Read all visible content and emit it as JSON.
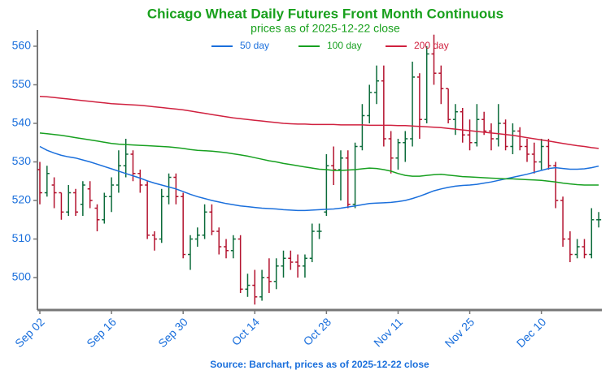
{
  "chart_data": {
    "type": "ohlc",
    "title": "Chicago Wheat Daily Futures Front Month Continuous",
    "subtitle": "prices as of 2025-12-22 close",
    "source": "Source: Barchart, prices as of 2025-12-22 close",
    "categories": [
      "Sep 02",
      null,
      null,
      null,
      null,
      null,
      null,
      null,
      null,
      null,
      "Sep 16",
      null,
      null,
      null,
      null,
      null,
      null,
      null,
      null,
      null,
      "Sep 30",
      null,
      null,
      null,
      null,
      null,
      null,
      null,
      null,
      null,
      "Oct 14",
      null,
      null,
      null,
      null,
      null,
      null,
      null,
      null,
      null,
      "Oct 28",
      null,
      null,
      null,
      null,
      null,
      null,
      null,
      null,
      null,
      "Nov 11",
      null,
      null,
      null,
      null,
      null,
      null,
      null,
      null,
      null,
      "Nov 25",
      null,
      null,
      null,
      null,
      null,
      null,
      null,
      null,
      null,
      "Dec 10",
      null,
      null,
      null,
      null,
      null,
      null,
      null,
      null
    ],
    "ohlc": {
      "open": [
        528,
        522,
        524,
        522,
        517,
        522,
        519,
        523,
        518,
        515,
        521,
        524,
        529,
        532,
        527,
        524,
        511,
        510,
        521,
        526,
        521,
        506,
        510,
        511,
        517,
        512,
        508,
        507,
        510,
        497,
        498,
        495,
        500,
        499,
        503,
        505,
        504,
        503,
        505,
        512,
        517,
        529,
        528,
        531,
        519,
        534,
        542,
        548,
        551,
        536,
        531,
        535,
        536,
        552,
        541,
        558,
        553,
        549,
        541,
        543,
        537,
        535,
        541,
        538,
        536,
        540,
        534,
        538,
        534,
        532,
        530,
        534,
        529,
        520,
        510,
        506,
        508,
        506,
        515
      ],
      "high": [
        530,
        529,
        526,
        522,
        524,
        523,
        525,
        525,
        519,
        522,
        526,
        533,
        536,
        533,
        528,
        525,
        512,
        523,
        527,
        527,
        522,
        511,
        513,
        519,
        519,
        513,
        510,
        511,
        511,
        501,
        502,
        502,
        505,
        505,
        507,
        507,
        506,
        506,
        514,
        514,
        532,
        534,
        533,
        533,
        535,
        545,
        550,
        555,
        555,
        538,
        536,
        538,
        556,
        553,
        560,
        563,
        555,
        549,
        545,
        544,
        541,
        545,
        543,
        540,
        545,
        541,
        540,
        539,
        536,
        535,
        536,
        536,
        530,
        521,
        512,
        510,
        510,
        518,
        517
      ],
      "low": [
        519,
        521,
        518,
        515,
        516,
        516,
        516,
        518,
        512,
        514,
        517,
        522,
        526,
        525,
        522,
        510,
        507,
        509,
        519,
        519,
        505,
        502,
        508,
        510,
        511,
        506,
        505,
        505,
        496,
        495,
        493,
        494,
        496,
        497,
        500,
        502,
        500,
        500,
        504,
        510,
        516,
        524,
        520,
        518,
        518,
        533,
        540,
        545,
        534,
        527,
        528,
        530,
        534,
        536,
        540,
        550,
        545,
        540,
        537,
        535,
        533,
        534,
        537,
        533,
        534,
        533,
        532,
        533,
        530,
        527,
        528,
        528,
        518,
        508,
        504,
        505,
        505,
        505,
        513
      ],
      "close": [
        522,
        527,
        522,
        517,
        522,
        517,
        524,
        520,
        515,
        521,
        524,
        529,
        532,
        527,
        524,
        511,
        510,
        521,
        526,
        521,
        506,
        510,
        511,
        517,
        512,
        508,
        507,
        510,
        497,
        498,
        495,
        500,
        499,
        503,
        505,
        504,
        503,
        505,
        512,
        512,
        529,
        528,
        531,
        519,
        534,
        542,
        548,
        551,
        536,
        531,
        535,
        536,
        552,
        541,
        558,
        553,
        549,
        541,
        543,
        537,
        535,
        541,
        538,
        536,
        540,
        534,
        538,
        534,
        532,
        530,
        534,
        529,
        520,
        510,
        506,
        508,
        506,
        515,
        515
      ]
    },
    "up_color": "#0b6b3a",
    "down_color": "#b3122e",
    "series": [
      {
        "name": "50 day",
        "color": "#1a6fdc",
        "values": [
          534,
          533,
          532.3,
          531.7,
          531.3,
          531,
          530.5,
          530,
          529.4,
          528.8,
          528.2,
          527.6,
          527,
          526.4,
          525.8,
          525.1,
          524.5,
          524,
          523.5,
          523,
          522.3,
          521.6,
          521,
          520.5,
          520,
          519.6,
          519.2,
          518.9,
          518.6,
          518.4,
          518.2,
          518,
          517.9,
          517.8,
          517.6,
          517.5,
          517.4,
          517.4,
          517.5,
          517.6,
          517.7,
          517.8,
          518,
          518.3,
          518.6,
          518.9,
          519.2,
          519.3,
          519.4,
          519.5,
          519.7,
          520,
          520.5,
          521.1,
          521.8,
          522.5,
          523,
          523.4,
          523.7,
          523.9,
          524,
          524.2,
          524.5,
          524.8,
          525.2,
          525.6,
          526,
          526.4,
          526.8,
          527.3,
          527.8,
          528.3,
          528.5,
          528.3,
          528.1,
          528.1,
          528.2,
          528.5,
          528.9
        ]
      },
      {
        "name": "100 day",
        "color": "#17a020",
        "values": [
          537.5,
          537.3,
          537.1,
          536.9,
          536.6,
          536.3,
          536,
          535.7,
          535.4,
          535.1,
          534.8,
          534.6,
          534.5,
          534.4,
          534.3,
          534.2,
          534.1,
          534,
          533.9,
          533.7,
          533.5,
          533.2,
          533,
          532.9,
          532.8,
          532.6,
          532.4,
          532.1,
          531.8,
          531.5,
          531.1,
          530.7,
          530.3,
          530,
          529.6,
          529.3,
          529,
          528.7,
          528.4,
          528.1,
          528,
          527.8,
          527.8,
          527.9,
          528,
          528.2,
          528.4,
          528.3,
          528,
          527.6,
          527,
          526.5,
          526.3,
          526.3,
          526.5,
          526.7,
          526.8,
          526.6,
          526.4,
          526.2,
          526.1,
          526,
          525.9,
          525.8,
          525.7,
          525.6,
          525.6,
          525.5,
          525.4,
          525.3,
          525.2,
          525,
          524.8,
          524.5,
          524.3,
          524.1,
          524,
          524,
          524
        ]
      },
      {
        "name": "200 day",
        "color": "#d0213f",
        "values": [
          547,
          546.9,
          546.7,
          546.5,
          546.3,
          546.1,
          545.9,
          545.7,
          545.5,
          545.3,
          545.1,
          545,
          544.9,
          544.8,
          544.7,
          544.5,
          544.3,
          544.1,
          543.9,
          543.7,
          543.5,
          543.2,
          542.9,
          542.6,
          542.3,
          542,
          541.7,
          541.4,
          541.2,
          541,
          540.8,
          540.6,
          540.4,
          540.2,
          540,
          539.9,
          539.8,
          539.8,
          539.7,
          539.7,
          539.7,
          539.7,
          539.6,
          539.6,
          539.6,
          539.6,
          539.5,
          539.5,
          539.5,
          539.5,
          539.4,
          539.4,
          539.3,
          539.2,
          539.1,
          539,
          538.9,
          538.7,
          538.5,
          538.3,
          538.1,
          537.9,
          537.7,
          537.5,
          537.3,
          537.1,
          536.9,
          536.6,
          536.3,
          536,
          535.7,
          535.4,
          535.1,
          534.8,
          534.5,
          534.2,
          534,
          533.7,
          533.5
        ]
      }
    ],
    "ylim": [
      491.8,
      564.2
    ],
    "yticks": [
      500,
      510,
      520,
      530,
      540,
      550,
      560
    ]
  }
}
